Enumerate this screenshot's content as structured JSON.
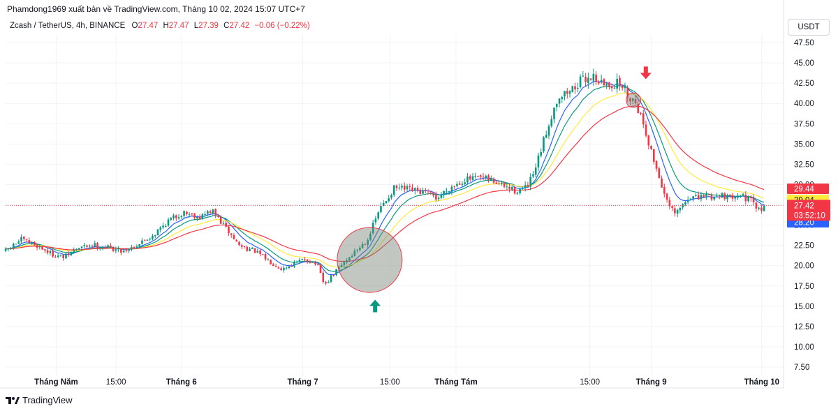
{
  "header": {
    "publish_line": "Phamdong1969 xuất bản về TradingView.com, Tháng 10 02, 2024 15:07 UTC+7"
  },
  "legend": {
    "symbol": "Zcash / TetherUS, 4h, BINANCE",
    "o_label": "O",
    "o_value": "27.47",
    "h_label": "H",
    "h_value": "27.47",
    "l_label": "L",
    "l_value": "27.39",
    "c_label": "C",
    "c_value": "27.42",
    "change": "−0.06 (−0.22%)"
  },
  "currency_button": "USDT",
  "footer": {
    "brand": "TradingView"
  },
  "colors": {
    "up": "#089981",
    "down": "#f23645",
    "ema_red": "#f23645",
    "ema_yellow": "#ffeb3b",
    "ema_green": "#089981",
    "ema_blue": "#2962ff",
    "grid": "#f0f3fa",
    "text": "#131722"
  },
  "chart_data": {
    "type": "candlestick",
    "y_ticks": [
      "47.50",
      "45.00",
      "42.50",
      "40.00",
      "37.50",
      "35.00",
      "32.50",
      "30.00",
      "27.50",
      "25.00",
      "22.50",
      "20.00",
      "17.50",
      "15.00",
      "12.50",
      "10.00",
      "7.50"
    ],
    "ylim": [
      6.5,
      48.5
    ],
    "x_ticks": [
      {
        "label": "Tháng Năm",
        "bold": true,
        "t": 0.065
      },
      {
        "label": "15:00",
        "bold": false,
        "t": 0.142
      },
      {
        "label": "Tháng 6",
        "bold": true,
        "t": 0.226
      },
      {
        "label": "Tháng 7",
        "bold": true,
        "t": 0.382
      },
      {
        "label": "15:00",
        "bold": false,
        "t": 0.494
      },
      {
        "label": "Tháng Tám",
        "bold": true,
        "t": 0.579
      },
      {
        "label": "15:00",
        "bold": false,
        "t": 0.751
      },
      {
        "label": "Tháng 9",
        "bold": true,
        "t": 0.83
      },
      {
        "label": "Tháng 10",
        "bold": true,
        "t": 0.972
      }
    ],
    "price_path": [
      [
        0.0,
        21.8
      ],
      [
        0.02,
        23.2
      ],
      [
        0.04,
        22.5
      ],
      [
        0.06,
        21.4
      ],
      [
        0.075,
        21.0
      ],
      [
        0.09,
        22.0
      ],
      [
        0.11,
        22.6
      ],
      [
        0.13,
        22.3
      ],
      [
        0.15,
        21.8
      ],
      [
        0.17,
        22.6
      ],
      [
        0.19,
        23.8
      ],
      [
        0.21,
        25.6
      ],
      [
        0.23,
        26.6
      ],
      [
        0.25,
        26.0
      ],
      [
        0.265,
        26.8
      ],
      [
        0.28,
        25.0
      ],
      [
        0.3,
        22.5
      ],
      [
        0.32,
        21.8
      ],
      [
        0.34,
        20.5
      ],
      [
        0.355,
        19.6
      ],
      [
        0.37,
        20.2
      ],
      [
        0.385,
        20.8
      ],
      [
        0.4,
        20.2
      ],
      [
        0.41,
        17.5
      ],
      [
        0.42,
        18.8
      ],
      [
        0.435,
        20.4
      ],
      [
        0.45,
        21.8
      ],
      [
        0.465,
        23.2
      ],
      [
        0.48,
        26.8
      ],
      [
        0.5,
        29.6
      ],
      [
        0.52,
        29.3
      ],
      [
        0.54,
        29.0
      ],
      [
        0.555,
        28.3
      ],
      [
        0.57,
        29.6
      ],
      [
        0.59,
        30.6
      ],
      [
        0.61,
        30.8
      ],
      [
        0.625,
        30.5
      ],
      [
        0.64,
        29.8
      ],
      [
        0.655,
        29.2
      ],
      [
        0.67,
        29.6
      ],
      [
        0.68,
        31.5
      ],
      [
        0.69,
        34.8
      ],
      [
        0.7,
        38.0
      ],
      [
        0.71,
        40.8
      ],
      [
        0.725,
        41.5
      ],
      [
        0.74,
        42.8
      ],
      [
        0.755,
        43.4
      ],
      [
        0.77,
        42.2
      ],
      [
        0.79,
        42.5
      ],
      [
        0.8,
        41.0
      ],
      [
        0.81,
        40.2
      ],
      [
        0.82,
        37.5
      ],
      [
        0.83,
        34.0
      ],
      [
        0.84,
        31.0
      ],
      [
        0.85,
        27.8
      ],
      [
        0.86,
        26.3
      ],
      [
        0.87,
        27.4
      ],
      [
        0.88,
        28.6
      ],
      [
        0.89,
        28.2
      ],
      [
        0.9,
        28.7
      ],
      [
        0.91,
        28.4
      ],
      [
        0.92,
        28.9
      ],
      [
        0.93,
        28.2
      ],
      [
        0.94,
        29.0
      ],
      [
        0.95,
        28.4
      ],
      [
        0.96,
        27.8
      ],
      [
        0.97,
        26.6
      ],
      [
        0.975,
        27.42
      ]
    ],
    "candle_count": 290,
    "emas": [
      {
        "color": "#2962ff",
        "period": 8,
        "last": 28.2
      },
      {
        "color": "#089981",
        "period": 14,
        "last": 28.63
      },
      {
        "color": "#ffeb3b",
        "period": 24,
        "last": 29.04
      },
      {
        "color": "#f23645",
        "period": 40,
        "last": 29.44
      }
    ],
    "last_price": 27.42,
    "countdown": "03:52:10",
    "price_labels": [
      {
        "value": "29.44",
        "bg": "#f23645",
        "fg": "#ffffff"
      },
      {
        "value": "29.04",
        "bg": "#ffeb3b",
        "fg": "#131722"
      },
      {
        "value": "28.63",
        "bg": "#089981",
        "fg": "#ffffff"
      },
      {
        "value": "28.20",
        "bg": "#2962ff",
        "fg": "#ffffff"
      }
    ],
    "annotations": [
      {
        "type": "circle",
        "t": 0.468,
        "price": 20.7,
        "r_data": 4.0,
        "fill": "rgba(120,130,120,0.45)"
      },
      {
        "type": "circle",
        "t": 0.807,
        "price": 40.4,
        "r_data": 0.9,
        "fill": "rgba(120,130,120,0.45)"
      },
      {
        "type": "arrow-up",
        "t": 0.475,
        "price": 15.8,
        "color": "#089981"
      },
      {
        "type": "arrow-down",
        "t": 0.823,
        "price": 43.0,
        "color": "#f23645"
      }
    ]
  }
}
